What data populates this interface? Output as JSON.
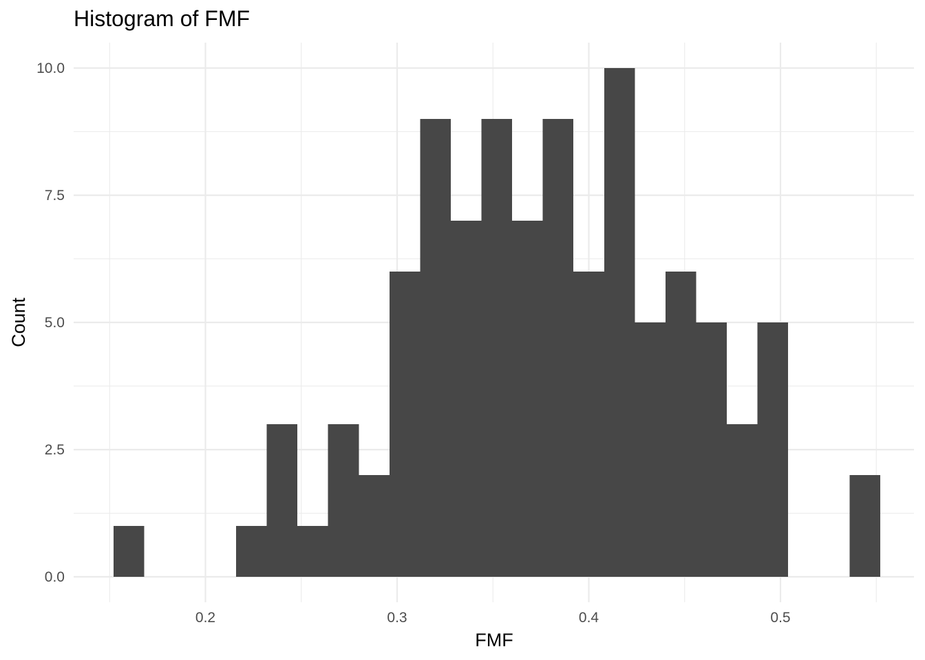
{
  "chart_data": {
    "type": "histogram",
    "title": "Histogram of FMF",
    "xlabel": "FMF",
    "ylabel": "Count",
    "bin_width": 0.016,
    "bins": [
      {
        "x0": 0.152,
        "x1": 0.168,
        "count": 1
      },
      {
        "x0": 0.168,
        "x1": 0.184,
        "count": 0
      },
      {
        "x0": 0.184,
        "x1": 0.2,
        "count": 0
      },
      {
        "x0": 0.2,
        "x1": 0.216,
        "count": 0
      },
      {
        "x0": 0.216,
        "x1": 0.232,
        "count": 1
      },
      {
        "x0": 0.232,
        "x1": 0.248,
        "count": 3
      },
      {
        "x0": 0.248,
        "x1": 0.264,
        "count": 1
      },
      {
        "x0": 0.264,
        "x1": 0.28,
        "count": 3
      },
      {
        "x0": 0.28,
        "x1": 0.296,
        "count": 2
      },
      {
        "x0": 0.296,
        "x1": 0.312,
        "count": 6
      },
      {
        "x0": 0.312,
        "x1": 0.328,
        "count": 9
      },
      {
        "x0": 0.328,
        "x1": 0.344,
        "count": 7
      },
      {
        "x0": 0.344,
        "x1": 0.36,
        "count": 9
      },
      {
        "x0": 0.36,
        "x1": 0.376,
        "count": 7
      },
      {
        "x0": 0.376,
        "x1": 0.392,
        "count": 9
      },
      {
        "x0": 0.392,
        "x1": 0.408,
        "count": 6
      },
      {
        "x0": 0.408,
        "x1": 0.424,
        "count": 10
      },
      {
        "x0": 0.424,
        "x1": 0.44,
        "count": 5
      },
      {
        "x0": 0.44,
        "x1": 0.456,
        "count": 6
      },
      {
        "x0": 0.456,
        "x1": 0.472,
        "count": 5
      },
      {
        "x0": 0.472,
        "x1": 0.488,
        "count": 3
      },
      {
        "x0": 0.488,
        "x1": 0.504,
        "count": 5
      },
      {
        "x0": 0.504,
        "x1": 0.52,
        "count": 0
      },
      {
        "x0": 0.52,
        "x1": 0.536,
        "count": 0
      },
      {
        "x0": 0.536,
        "x1": 0.552,
        "count": 2
      }
    ],
    "xlim": [
      0.13,
      0.56
    ],
    "ylim": [
      -0.5,
      10.5
    ],
    "x_ticks": [
      0.2,
      0.3,
      0.4,
      0.5
    ],
    "x_tick_labels": [
      "0.2",
      "0.3",
      "0.4",
      "0.5"
    ],
    "x_minor_ticks": [
      0.15,
      0.25,
      0.35,
      0.45,
      0.55
    ],
    "y_ticks": [
      0,
      2.5,
      5,
      7.5,
      10
    ],
    "y_tick_labels": [
      "0.0",
      "2.5",
      "5.0",
      "7.5",
      "10.0"
    ],
    "y_minor_ticks": [
      1.25,
      3.75,
      6.25,
      8.75
    ],
    "grid": true,
    "colors": {
      "bar_fill": "#474747",
      "grid": "#ebebeb",
      "background": "#ffffff",
      "tick_text": "#4d4d4d",
      "text": "#000000"
    }
  }
}
